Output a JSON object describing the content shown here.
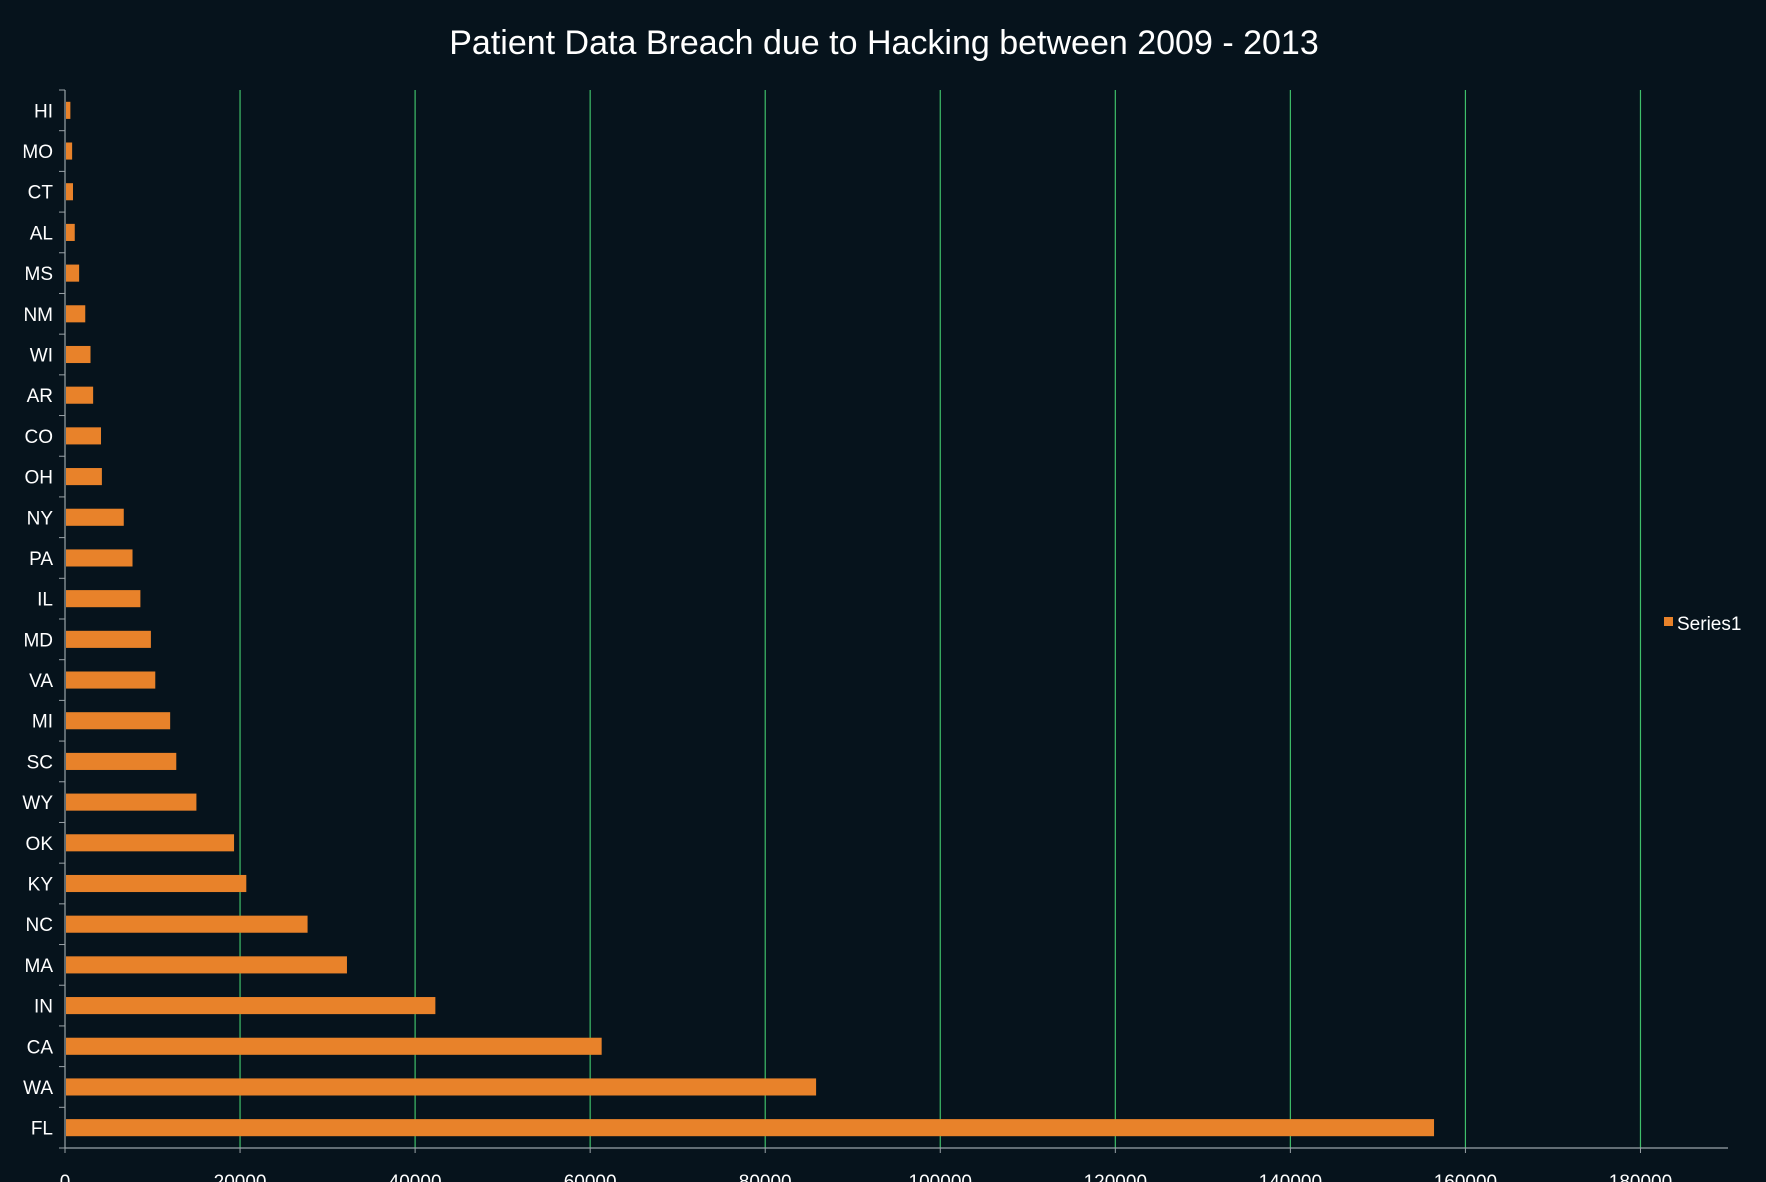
{
  "chart_data": {
    "type": "bar",
    "orientation": "horizontal",
    "title": "Patient Data Breach due to Hacking between 2009 - 2013",
    "xlabel": "",
    "ylabel": "",
    "xlim": [
      0,
      190000
    ],
    "x_ticks": [
      0,
      20000,
      40000,
      60000,
      80000,
      100000,
      120000,
      140000,
      160000,
      180000
    ],
    "grid": "vertical",
    "legend": "right",
    "colors": {
      "background": "#06131c",
      "bar": "#e8822a",
      "grid": "#3fbf6a",
      "text": "#ffffff",
      "axis": "#9aa3a8"
    },
    "categories": [
      "HI",
      "MO",
      "CT",
      "AL",
      "MS",
      "NM",
      "WI",
      "AR",
      "CO",
      "OH",
      "NY",
      "PA",
      "IL",
      "MD",
      "VA",
      "MI",
      "SC",
      "WY",
      "OK",
      "KY",
      "NC",
      "MA",
      "IN",
      "CA",
      "WA",
      "FL"
    ],
    "series": [
      {
        "name": "Series1",
        "values": [
          500,
          700,
          800,
          1000,
          1500,
          2200,
          2800,
          3100,
          4000,
          4100,
          6600,
          7600,
          8500,
          9700,
          10200,
          11900,
          12600,
          14900,
          19200,
          20600,
          27600,
          32100,
          42200,
          61200,
          85700,
          156300
        ]
      }
    ]
  }
}
